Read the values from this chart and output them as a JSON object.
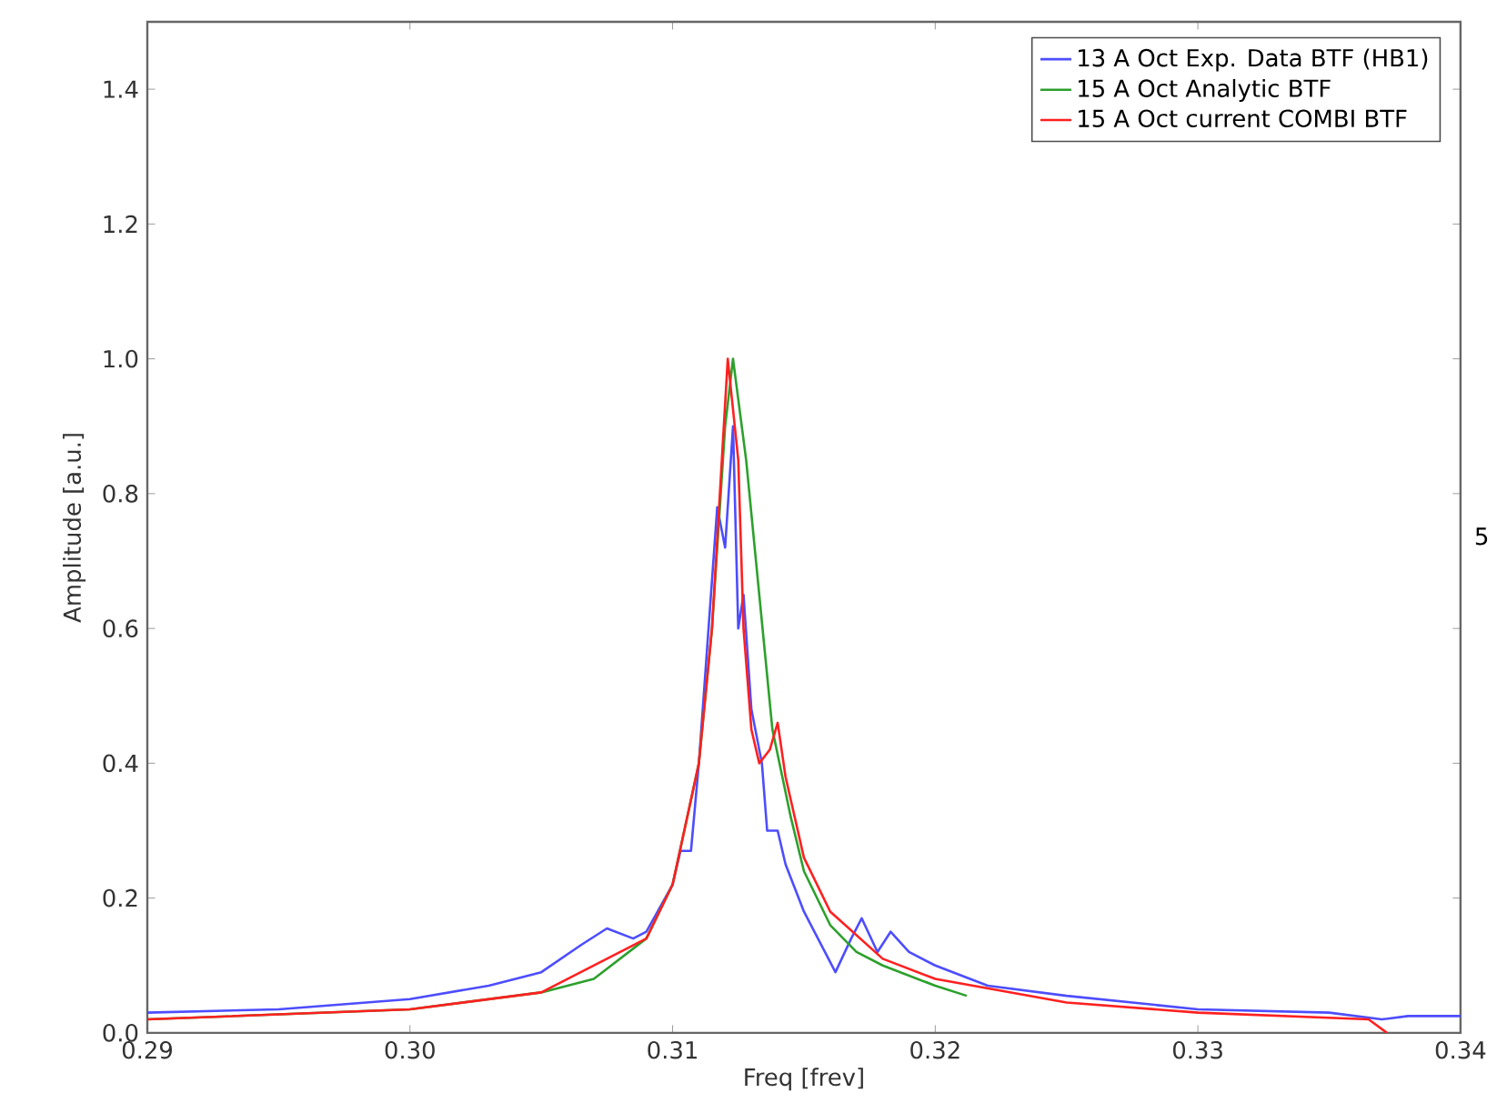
{
  "chart_data": {
    "type": "line",
    "xlabel": "Freq [frev]",
    "ylabel": "Amplitude [a.u.]",
    "xlim": [
      0.29,
      0.34
    ],
    "ylim": [
      0,
      1.5
    ],
    "xticks": [
      {
        "value": 0.29,
        "label": "0.29"
      },
      {
        "value": 0.3,
        "label": "0.30"
      },
      {
        "value": 0.31,
        "label": "0.31"
      },
      {
        "value": 0.32,
        "label": "0.32"
      },
      {
        "value": 0.33,
        "label": "0.33"
      },
      {
        "value": 0.34,
        "label": "0.34"
      }
    ],
    "yticks": [
      {
        "value": 0,
        "label": "0.0"
      },
      {
        "value": 0.2,
        "label": "0.2"
      },
      {
        "value": 0.4,
        "label": "0.4"
      },
      {
        "value": 0.6,
        "label": "0.6"
      },
      {
        "value": 0.8,
        "label": "0.8"
      },
      {
        "value": 1.0,
        "label": "1.0"
      },
      {
        "value": 1.2,
        "label": "1.2"
      },
      {
        "value": 1.4,
        "label": "1.4"
      }
    ],
    "legend": "top right",
    "annotations": [
      "5"
    ],
    "series": [
      {
        "name": "13 A Oct Exp. Data BTF (HB1)",
        "color": "#4d4dff",
        "x": [
          0.29,
          0.295,
          0.3,
          0.303,
          0.305,
          0.3065,
          0.3075,
          0.3085,
          0.309,
          0.31,
          0.3103,
          0.3107,
          0.311,
          0.3117,
          0.312,
          0.3123,
          0.3125,
          0.3127,
          0.313,
          0.3134,
          0.3136,
          0.314,
          0.3143,
          0.315,
          0.3162,
          0.3168,
          0.3172,
          0.3178,
          0.3183,
          0.319,
          0.32,
          0.322,
          0.325,
          0.33,
          0.335,
          0.337,
          0.338,
          0.34
        ],
        "values": [
          0.03,
          0.035,
          0.05,
          0.07,
          0.09,
          0.13,
          0.155,
          0.14,
          0.15,
          0.22,
          0.27,
          0.27,
          0.4,
          0.78,
          0.72,
          0.9,
          0.6,
          0.65,
          0.48,
          0.4,
          0.3,
          0.3,
          0.25,
          0.18,
          0.09,
          0.14,
          0.17,
          0.12,
          0.15,
          0.12,
          0.1,
          0.07,
          0.055,
          0.035,
          0.03,
          0.02,
          0.025,
          0.025
        ]
      },
      {
        "name": "15 A Oct Analytic BTF",
        "color": "#2ca02c",
        "x": [
          0.29,
          0.3,
          0.305,
          0.307,
          0.309,
          0.31,
          0.311,
          0.3115,
          0.312,
          0.3123,
          0.3128,
          0.3133,
          0.3138,
          0.3145,
          0.315,
          0.316,
          0.317,
          0.318,
          0.32,
          0.3212
        ],
        "values": [
          0.02,
          0.035,
          0.06,
          0.08,
          0.14,
          0.22,
          0.4,
          0.6,
          0.9,
          1.0,
          0.85,
          0.65,
          0.45,
          0.32,
          0.24,
          0.16,
          0.12,
          0.1,
          0.07,
          0.055
        ]
      },
      {
        "name": "15 A Oct current COMBI BTF",
        "color": "#ff2020",
        "x": [
          0.29,
          0.3,
          0.305,
          0.309,
          0.31,
          0.311,
          0.3115,
          0.3121,
          0.3125,
          0.3127,
          0.313,
          0.3133,
          0.3137,
          0.314,
          0.3143,
          0.315,
          0.316,
          0.318,
          0.32,
          0.325,
          0.33,
          0.3365,
          0.3372
        ],
        "values": [
          0.02,
          0.035,
          0.06,
          0.14,
          0.22,
          0.4,
          0.6,
          1.0,
          0.85,
          0.6,
          0.45,
          0.4,
          0.42,
          0.46,
          0.38,
          0.26,
          0.18,
          0.11,
          0.08,
          0.045,
          0.03,
          0.02,
          0.0
        ]
      }
    ]
  }
}
